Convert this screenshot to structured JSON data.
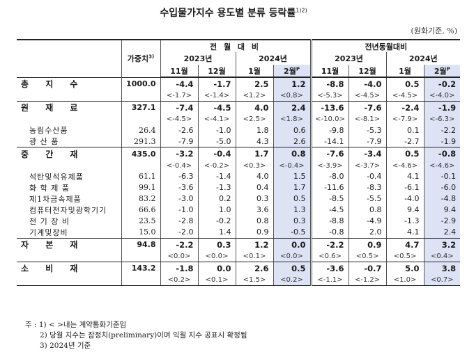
{
  "title": "수입물가지수 용도별 분류 등락률",
  "title_sup": "1)2)",
  "unit": "(원화기준, %)",
  "headers": {
    "weight": "가중치",
    "weight_sup": "3)",
    "mom": "전 월 대 비",
    "yoy": "전년동월대비",
    "y2023": "2023년",
    "y2024": "2024년",
    "m11": "11월",
    "m12": "12월",
    "m1": "1월",
    "m2": "2월",
    "m2_sup": "P"
  },
  "rows": [
    {
      "label": "총 지 수",
      "weight": "1000.0",
      "values": [
        "-4.4",
        "-1.7",
        "2.5",
        "1.2",
        "-8.8",
        "-4.0",
        "0.5",
        "-0.2"
      ],
      "contract": [
        "<-1.7>",
        "<-1.4>",
        "<1.2>",
        "<0.8>",
        "<-5.3>",
        "<-4.5>",
        "<-4.5>",
        "<-4.0>"
      ],
      "subs": []
    },
    {
      "label": "원 재 료",
      "weight": "327.1",
      "values": [
        "-7.4",
        "-4.5",
        "4.0",
        "2.4",
        "-13.6",
        "-7.6",
        "-2.4",
        "-1.9"
      ],
      "contract": [
        "<-4.5>",
        "<-4.1>",
        "<2.5>",
        "<1.8>",
        "<-10.0>",
        "<-8.1>",
        "<-7.9>",
        "<-6.3>"
      ],
      "subs": [
        {
          "label": "농림수산품",
          "weight": "26.4",
          "values": [
            "-2.6",
            "-1.0",
            "1.8",
            "0.6",
            "-9.8",
            "-5.3",
            "0.1",
            "-2.2"
          ]
        },
        {
          "label": "광 산 품",
          "weight": "291.3",
          "values": [
            "-7.9",
            "-5.0",
            "4.3",
            "2.6",
            "-14.1",
            "-7.9",
            "-2.7",
            "-1.9"
          ]
        }
      ]
    },
    {
      "label": "중 간 재",
      "weight": "435.0",
      "values": [
        "-3.2",
        "-0.4",
        "1.7",
        "0.8",
        "-7.6",
        "-3.4",
        "0.5",
        "-0.8"
      ],
      "contract": [
        "<-0.4>",
        "<-0.2>",
        "<0.3>",
        "<-0.4>",
        "<-3.9>",
        "<-3.7>",
        "<-4.6>",
        "<-4.6>"
      ],
      "subs": [
        {
          "label": "석탄및석유제품",
          "weight": "61.1",
          "values": [
            "-6.3",
            "-1.4",
            "4.0",
            "1.5",
            "-8.0",
            "-0.4",
            "4.1",
            "-0.1"
          ]
        },
        {
          "label": "화 학 제 품",
          "weight": "99.1",
          "values": [
            "-3.6",
            "-1.3",
            "0.4",
            "1.7",
            "-11.6",
            "-8.3",
            "-6.1",
            "-6.0"
          ]
        },
        {
          "label": "제1차금속제품",
          "weight": "83.2",
          "values": [
            "-3.0",
            "0.2",
            "0.3",
            "0.5",
            "-8.5",
            "-5.5",
            "-4.0",
            "-4.8"
          ]
        },
        {
          "label": "컴퓨터전자및광학기기",
          "weight": "66.6",
          "values": [
            "-1.0",
            "1.0",
            "3.6",
            "1.3",
            "-4.5",
            "0.8",
            "9.4",
            "9.4"
          ]
        },
        {
          "label": "전 기 장 비",
          "weight": "23.5",
          "values": [
            "-2.8",
            "-0.2",
            "0.8",
            "0.3",
            "-8.8",
            "-4.9",
            "-1.3",
            "-2.9"
          ]
        },
        {
          "label": "기계및장비",
          "weight": "15.0",
          "values": [
            "-2.0",
            "1.4",
            "0.9",
            "-0.5",
            "-0.8",
            "2.0",
            "4.1",
            "2.4"
          ]
        }
      ]
    },
    {
      "label": "자 본 재",
      "weight": "94.8",
      "values": [
        "-2.2",
        "0.3",
        "1.2",
        "0.0",
        "-2.2",
        "0.9",
        "4.7",
        "3.2"
      ],
      "contract": [
        "<0.0>",
        "<0.0>",
        "<0.1>",
        "<0.0>",
        "<0.6>",
        "<0.5>",
        "<0.5>",
        "<0.4>"
      ],
      "subs": []
    },
    {
      "label": "소 비 재",
      "weight": "143.2",
      "values": [
        "-1.8",
        "0.0",
        "2.6",
        "0.5",
        "-3.6",
        "-0.7",
        "5.0",
        "3.8"
      ],
      "contract": [
        "<0.2>",
        "<0.1>",
        "<1.5>",
        "<0.2>",
        "<-1.1>",
        "<-1.2>",
        "<1.0>",
        "<0.7>"
      ],
      "subs": []
    }
  ],
  "notes": [
    "주 : 1) < >내는 계약통화기준임",
    "2) 당월 지수는 잠정치(preliminary)이며 익월 지수 공표시 확정됨",
    "3) 2024년 기준"
  ]
}
